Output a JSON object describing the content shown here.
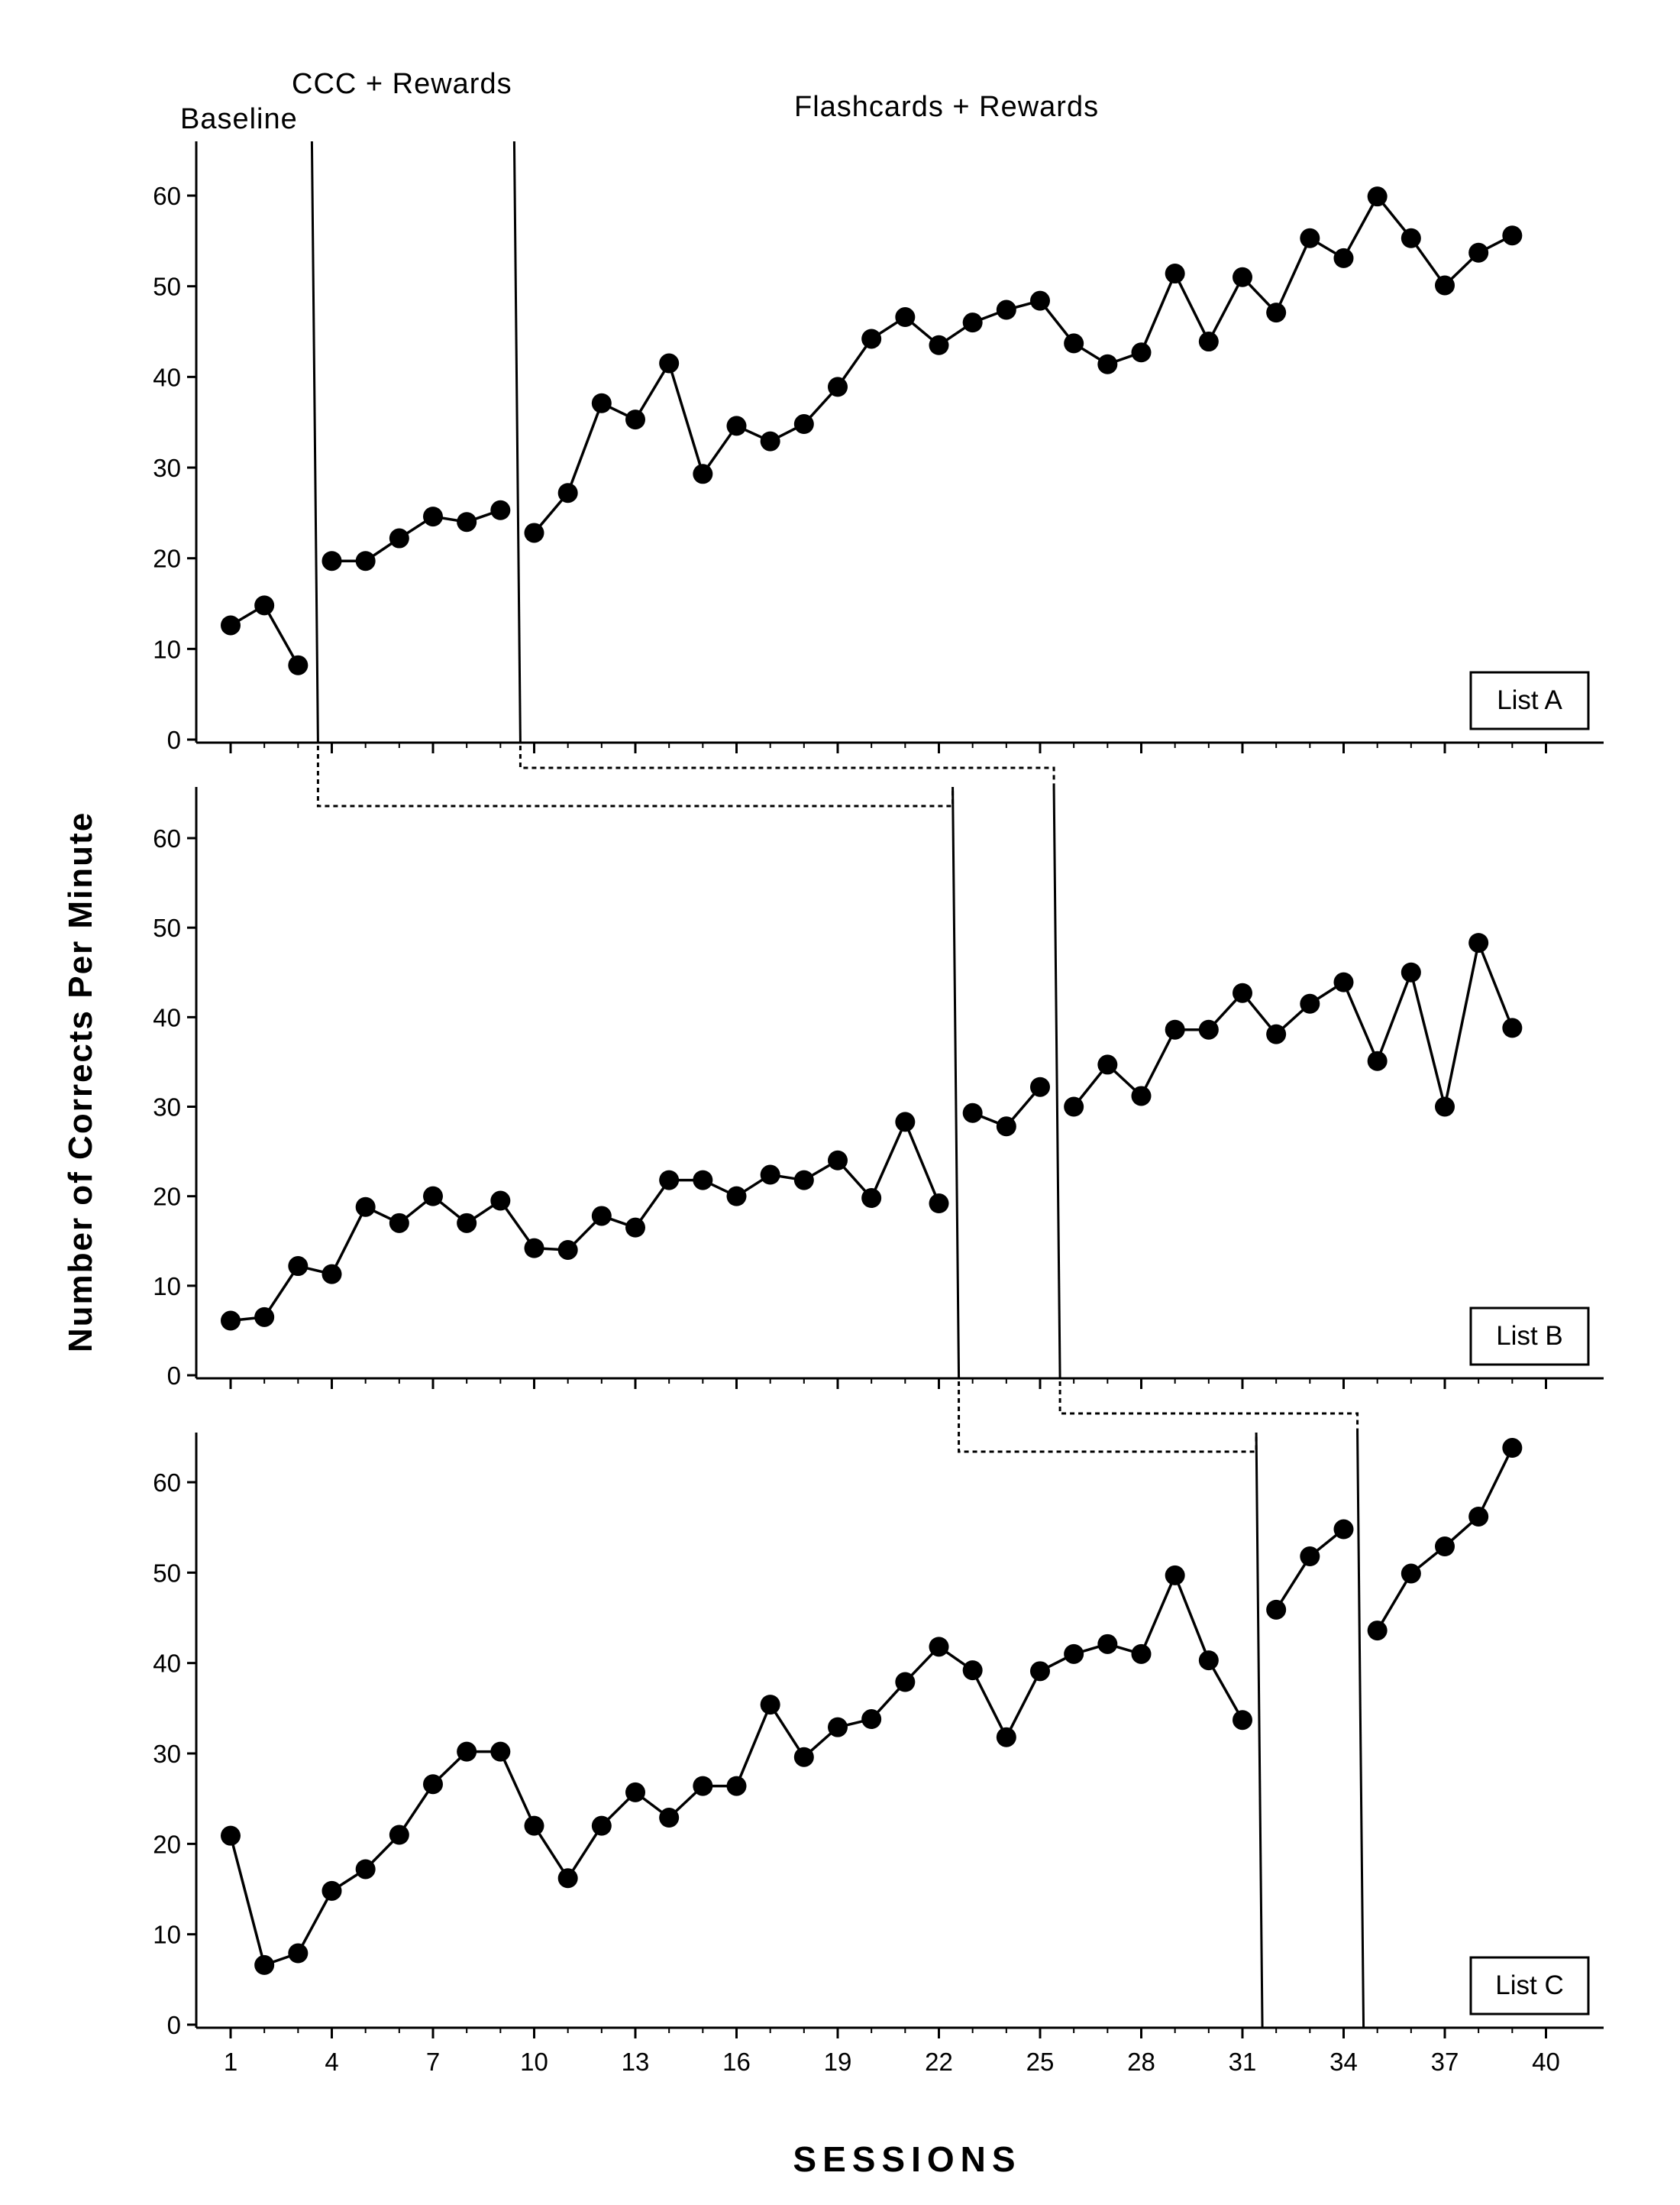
{
  "chart_data": {
    "type": "line",
    "xlabel": "SESSIONS",
    "ylabel": "Number of Corrects Per Minute",
    "xticks": [
      1,
      4,
      7,
      10,
      13,
      16,
      19,
      22,
      25,
      28,
      31,
      34,
      37,
      40
    ],
    "yticks": [
      0,
      10,
      20,
      30,
      40,
      50,
      60
    ],
    "xlim": [
      0.5,
      42.5
    ],
    "ylim": [
      0,
      65
    ],
    "grid": false,
    "phase_labels": [
      "Baseline",
      "CCC + Rewards",
      "Flashcards + Rewards"
    ],
    "panels": [
      {
        "name": "List A",
        "phase_changes": [
          3.5,
          9.5
        ],
        "segments": [
          {
            "x": [
              1,
              2,
              3
            ],
            "y": [
              12.6,
              14.8,
              8.2
            ]
          },
          {
            "x": [
              4,
              5,
              6,
              7,
              8,
              9
            ],
            "y": [
              19.7,
              19.7,
              22.2,
              24.6,
              24.0,
              25.3
            ]
          },
          {
            "x": [
              10,
              11,
              12,
              13,
              14,
              15,
              16,
              17,
              18,
              19,
              20,
              21,
              22,
              23,
              24,
              25,
              26,
              27,
              28,
              29,
              30,
              31,
              32,
              33,
              34,
              35,
              36,
              37,
              38,
              39
            ],
            "y": [
              22.8,
              27.2,
              37.1,
              35.3,
              41.5,
              29.3,
              34.6,
              32.9,
              34.8,
              38.9,
              44.2,
              46.6,
              43.5,
              46.0,
              47.4,
              48.4,
              43.7,
              41.4,
              42.7,
              51.4,
              43.9,
              51.0,
              47.1,
              55.3,
              53.1,
              59.9,
              55.3,
              50.1,
              53.7,
              55.6
            ]
          }
        ]
      },
      {
        "name": "List B",
        "phase_changes": [
          22.5,
          25.5
        ],
        "segments": [
          {
            "x": [
              1,
              2,
              3,
              4,
              5,
              6,
              7,
              8,
              9,
              10,
              11,
              12,
              13,
              14,
              15,
              16,
              17,
              18,
              19,
              20,
              21,
              22
            ],
            "y": [
              6.1,
              6.5,
              12.2,
              11.3,
              18.8,
              17.0,
              20.0,
              17.0,
              19.5,
              14.2,
              14.0,
              17.8,
              16.5,
              21.8,
              21.8,
              20.0,
              22.4,
              21.8,
              24.0,
              19.8,
              28.3,
              19.2
            ]
          },
          {
            "x": [
              23,
              24,
              25
            ],
            "y": [
              29.3,
              27.8,
              32.2
            ]
          },
          {
            "x": [
              26,
              27,
              28,
              29,
              30,
              31,
              32,
              33,
              34,
              35,
              36,
              37,
              38,
              39
            ],
            "y": [
              30.0,
              34.7,
              31.2,
              38.6,
              38.6,
              42.7,
              38.1,
              41.5,
              43.9,
              35.1,
              45.0,
              30.0,
              48.3,
              38.8
            ]
          }
        ]
      },
      {
        "name": "List C",
        "phase_changes": [
          31.5,
          34.5
        ],
        "segments": [
          {
            "x": [
              1,
              2,
              3,
              4,
              5,
              6,
              7,
              8,
              9,
              10,
              11,
              12,
              13,
              14,
              15,
              16,
              17,
              18,
              19,
              20,
              21,
              22,
              23,
              24,
              25,
              26,
              27,
              28,
              29,
              30,
              31
            ],
            "y": [
              20.9,
              6.6,
              7.9,
              14.8,
              17.2,
              21.0,
              26.6,
              30.2,
              30.2,
              22.0,
              16.2,
              22.0,
              25.7,
              22.9,
              26.4,
              26.4,
              35.4,
              29.6,
              32.9,
              33.8,
              37.9,
              41.8,
              39.2,
              31.8,
              39.1,
              41.0,
              42.1,
              41.0,
              49.7,
              40.3,
              33.7
            ]
          },
          {
            "x": [
              32,
              33,
              34
            ],
            "y": [
              45.9,
              51.8,
              54.8
            ]
          },
          {
            "x": [
              35,
              36,
              37,
              38,
              39
            ],
            "y": [
              43.6,
              49.9,
              52.9,
              56.2,
              63.8
            ]
          }
        ]
      }
    ]
  }
}
